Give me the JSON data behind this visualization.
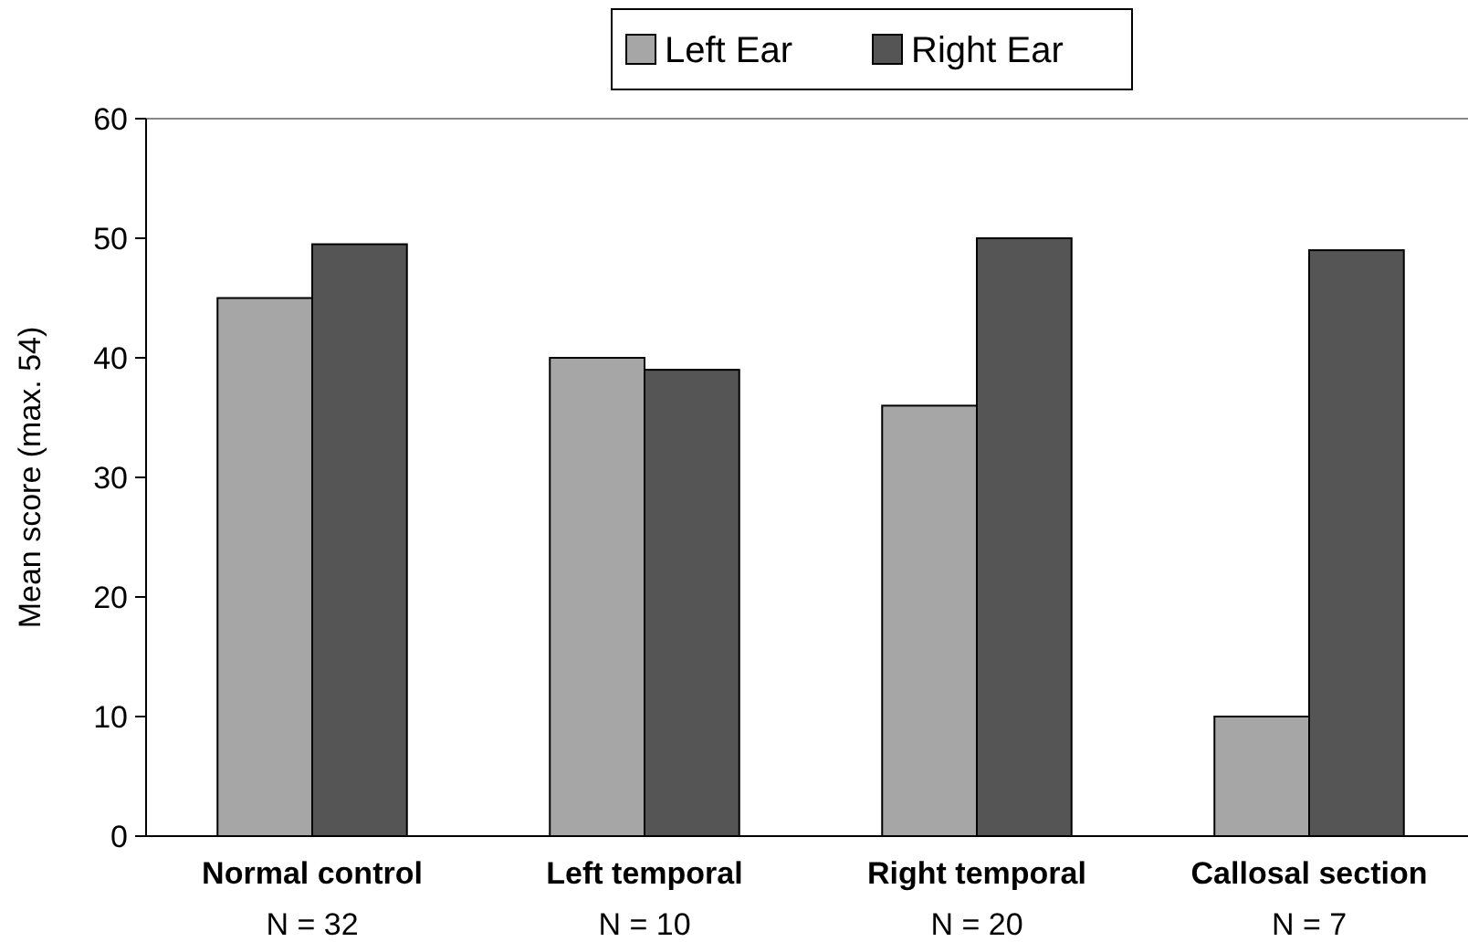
{
  "chart_data": {
    "type": "bar",
    "ylabel": "Mean score (max.  54)",
    "categories": [
      "Normal control\nN = 32",
      "Left temporal\nN = 10",
      "Right temporal\nN = 20",
      "Callosal section\nN = 7"
    ],
    "series": [
      {
        "name": "Left Ear",
        "color": "#a6a6a6",
        "values": [
          45,
          40,
          36,
          10
        ]
      },
      {
        "name": "Right Ear",
        "color": "#555555",
        "values": [
          49.5,
          39,
          50,
          49
        ]
      }
    ],
    "ylim": [
      0,
      60
    ],
    "yticks": [
      0,
      10,
      20,
      30,
      40,
      50,
      60
    ],
    "grid": false,
    "legend": "top"
  }
}
